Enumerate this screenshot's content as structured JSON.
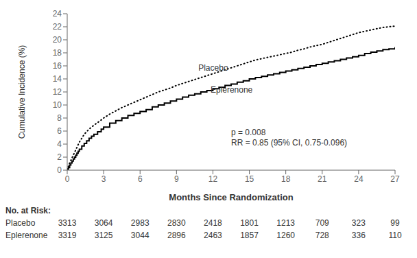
{
  "chart_data": {
    "type": "line",
    "ylabel": "Cumulative Incidence (%)",
    "xlabel": "Months Since Randomization",
    "xlim": [
      0,
      27
    ],
    "ylim": [
      0,
      24
    ],
    "xticks": [
      0,
      3,
      6,
      9,
      12,
      15,
      18,
      21,
      24,
      27
    ],
    "yticks": [
      0,
      2,
      4,
      6,
      8,
      10,
      12,
      14,
      16,
      18,
      20,
      22,
      24
    ],
    "grid": false,
    "x": [
      0,
      0.05,
      0.1,
      0.2,
      0.3,
      0.4,
      0.5,
      0.6,
      0.7,
      0.8,
      0.9,
      1.0,
      1.2,
      1.4,
      1.6,
      1.8,
      2.0,
      2.2,
      2.5,
      2.8,
      3.0,
      3.5,
      4.0,
      4.5,
      5.0,
      5.5,
      6.0,
      6.5,
      7.0,
      7.5,
      8.0,
      8.5,
      9.0,
      9.5,
      10.0,
      10.5,
      11.0,
      11.5,
      12.0,
      12.5,
      13.0,
      13.5,
      14.0,
      14.5,
      15.0,
      15.5,
      16.0,
      16.5,
      17.0,
      17.5,
      18.0,
      18.5,
      19.0,
      19.5,
      20.0,
      20.5,
      21.0,
      21.5,
      22.0,
      22.5,
      23.0,
      23.5,
      24.0,
      24.5,
      25.0,
      25.5,
      26.0,
      26.5,
      27.0
    ],
    "series": [
      {
        "name": "Placebo",
        "color": "#000000",
        "type": "line",
        "line_style": "dotted",
        "label_at": [
          10.8,
          15.0
        ],
        "values": [
          0,
          0.3,
          0.6,
          1.1,
          1.5,
          1.9,
          2.3,
          2.7,
          3.1,
          3.5,
          3.9,
          4.3,
          4.9,
          5.5,
          5.9,
          6.3,
          6.6,
          6.9,
          7.3,
          7.7,
          8.0,
          8.6,
          9.1,
          9.6,
          10.0,
          10.4,
          10.8,
          11.2,
          11.6,
          12.0,
          12.3,
          12.6,
          13.0,
          13.3,
          13.6,
          13.9,
          14.2,
          14.5,
          14.8,
          15.1,
          15.4,
          15.7,
          16.0,
          16.3,
          16.6,
          16.9,
          17.1,
          17.3,
          17.5,
          17.7,
          17.9,
          18.1,
          18.4,
          18.6,
          18.9,
          19.1,
          19.3,
          19.6,
          19.9,
          20.2,
          20.5,
          20.8,
          21.1,
          21.3,
          21.5,
          21.7,
          21.9,
          22.0,
          22.1
        ]
      },
      {
        "name": "Eplerenone",
        "color": "#000000",
        "type": "step",
        "line_style": "solid",
        "label_at": [
          11.8,
          11.6
        ],
        "values": [
          0,
          0.2,
          0.4,
          0.8,
          1.1,
          1.4,
          1.7,
          2.0,
          2.3,
          2.6,
          2.9,
          3.2,
          3.7,
          4.1,
          4.5,
          4.9,
          5.2,
          5.5,
          5.9,
          6.3,
          6.6,
          7.2,
          7.6,
          8.0,
          8.4,
          8.7,
          9.0,
          9.3,
          9.7,
          10.0,
          10.3,
          10.6,
          10.9,
          11.2,
          11.5,
          11.7,
          12.0,
          12.2,
          12.5,
          12.7,
          13.0,
          13.2,
          13.5,
          13.7,
          14.0,
          14.2,
          14.4,
          14.6,
          14.8,
          15.0,
          15.2,
          15.4,
          15.6,
          15.8,
          16.0,
          16.2,
          16.4,
          16.6,
          16.8,
          17.0,
          17.2,
          17.4,
          17.6,
          17.9,
          18.1,
          18.3,
          18.5,
          18.6,
          18.8
        ]
      }
    ],
    "annotations": [
      {
        "text": "p = 0.008\nRR = 0.85 (95% CI, 0.75-0.096)",
        "x": 13.5,
        "y": 3.5
      }
    ],
    "at_risk": {
      "label": "No. at Risk:",
      "x": [
        0,
        3,
        6,
        9,
        12,
        15,
        18,
        21,
        24,
        27
      ],
      "rows": [
        {
          "name": "Placebo",
          "values": [
            3313,
            3064,
            2983,
            2830,
            2418,
            1801,
            1213,
            709,
            323,
            99
          ]
        },
        {
          "name": "Eplerenone",
          "values": [
            3319,
            3125,
            3044,
            2896,
            2463,
            1857,
            1260,
            728,
            336,
            110
          ]
        }
      ]
    }
  }
}
